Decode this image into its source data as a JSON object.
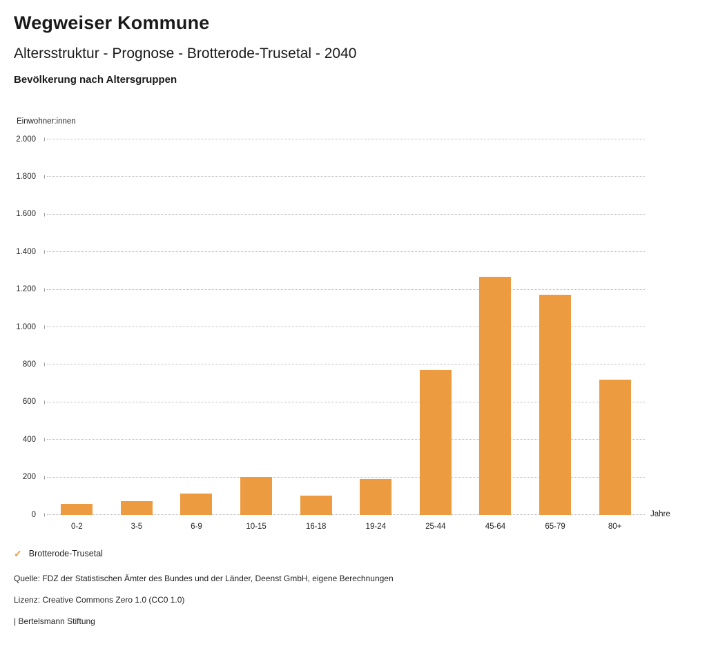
{
  "header": {
    "title": "Wegweiser Kommune",
    "subtitle": "Altersstruktur - Prognose - Brotterode-Trusetal - 2040",
    "chart_heading": "Bevölkerung nach Altersgruppen"
  },
  "chart_data": {
    "type": "bar",
    "title": "Bevölkerung nach Altersgruppen",
    "ylabel": "Einwohner:innen",
    "xlabel": "Jahre",
    "categories": [
      "0-2",
      "3-5",
      "6-9",
      "10-15",
      "16-18",
      "19-24",
      "25-44",
      "45-64",
      "65-79",
      "80+"
    ],
    "series": [
      {
        "name": "Brotterode-Trusetal",
        "values": [
          60,
          73,
          114,
          201,
          103,
          190,
          772,
          1270,
          1172,
          722
        ]
      }
    ],
    "ylim": [
      0,
      2000
    ],
    "ytick_step": 200,
    "ytick_labels": [
      "0",
      "200",
      "400",
      "600",
      "800",
      "1.000",
      "1.200",
      "1.400",
      "1.600",
      "1.800",
      "2.000"
    ],
    "grid": "horizontal-dotted",
    "legend_position": "bottom-left",
    "bar_color": "#ED9B40"
  },
  "legend": {
    "items": [
      {
        "label": "Brotterode-Trusetal",
        "color": "#ED9B40",
        "marker": "check-icon"
      }
    ]
  },
  "footer": {
    "source": "Quelle: FDZ der Statistischen Ämter des Bundes und der Länder, Deenst GmbH, eigene Berechnungen",
    "license": "Lizenz: Creative Commons Zero 1.0 (CC0 1.0)",
    "attribution": "| Bertelsmann Stiftung"
  }
}
